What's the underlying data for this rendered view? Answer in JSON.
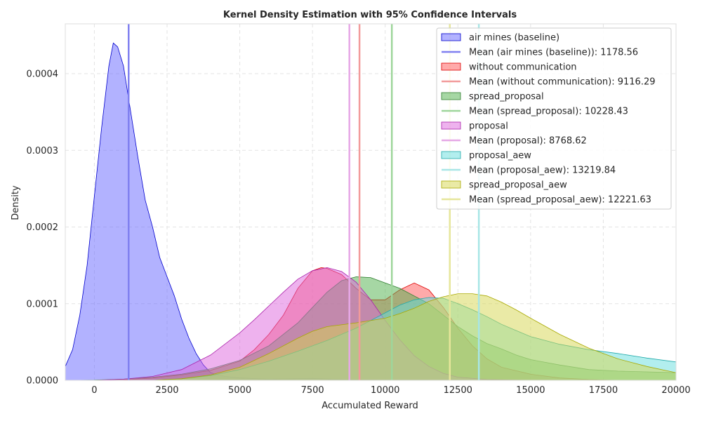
{
  "chart_data": {
    "type": "area",
    "title": "Kernel Density Estimation with 95% Confidence Intervals",
    "xlabel": "Accumulated Reward",
    "ylabel": "Density",
    "xlim": [
      -1000,
      20000
    ],
    "ylim": [
      0,
      0.000465
    ],
    "xticks": [
      0,
      2500,
      5000,
      7500,
      10000,
      12500,
      15000,
      17500,
      20000
    ],
    "yticks": [
      0.0,
      0.0001,
      0.0002,
      0.0003,
      0.0004
    ],
    "xtick_labels": [
      "0",
      "2500",
      "5000",
      "7500",
      "10000",
      "12500",
      "15000",
      "17500",
      "20000"
    ],
    "ytick_labels": [
      "0.0000",
      "0.0001",
      "0.0002",
      "0.0003",
      "0.0004"
    ],
    "grid": true,
    "legend_position": "top-right",
    "series": [
      {
        "name": "air mines (baseline)",
        "mean_label": "Mean (air mines (baseline)): 1178.56",
        "mean": 1178.56,
        "fill": "#6666ff",
        "stroke": "#0000cc",
        "mean_color": "#8080f0",
        "points": [
          [
            -1000,
            1.8e-05
          ],
          [
            -750,
            4e-05
          ],
          [
            -500,
            8.5e-05
          ],
          [
            -250,
            0.00015
          ],
          [
            0,
            0.00024
          ],
          [
            250,
            0.00033
          ],
          [
            500,
            0.00041
          ],
          [
            650,
            0.00044
          ],
          [
            800,
            0.000435
          ],
          [
            1000,
            0.00041
          ],
          [
            1250,
            0.00035
          ],
          [
            1500,
            0.00029
          ],
          [
            1750,
            0.000235
          ],
          [
            2000,
            0.0002
          ],
          [
            2250,
            0.00016
          ],
          [
            2500,
            0.000135
          ],
          [
            2750,
            0.00011
          ],
          [
            3000,
            8e-05
          ],
          [
            3250,
            5.5e-05
          ],
          [
            3500,
            3.5e-05
          ],
          [
            3750,
            2e-05
          ],
          [
            4000,
            1e-05
          ],
          [
            4250,
            7e-06
          ],
          [
            4500,
            5e-06
          ],
          [
            5000,
            3e-06
          ],
          [
            6000,
            1.5e-06
          ],
          [
            7500,
            2.5e-06
          ],
          [
            8500,
            1e-06
          ],
          [
            10000,
            5e-07
          ],
          [
            12000,
            2e-07
          ],
          [
            14000,
            0
          ],
          [
            20000,
            0
          ]
        ]
      },
      {
        "name": "without communication",
        "mean_label": "Mean (without communication): 9116.29",
        "mean": 9116.29,
        "fill": "#ff5555",
        "stroke": "#dd0000",
        "mean_color": "#f29a9a",
        "points": [
          [
            0,
            0
          ],
          [
            1000,
            5e-07
          ],
          [
            2000,
            3e-06
          ],
          [
            3000,
            7e-06
          ],
          [
            4000,
            1.3e-05
          ],
          [
            5000,
            2.5e-05
          ],
          [
            5500,
            4e-05
          ],
          [
            6000,
            6e-05
          ],
          [
            6500,
            8.5e-05
          ],
          [
            7000,
            0.00012
          ],
          [
            7500,
            0.000143
          ],
          [
            7800,
            0.000147
          ],
          [
            8000,
            0.000146
          ],
          [
            8500,
            0.000138
          ],
          [
            9000,
            0.00012
          ],
          [
            9500,
            0.000105
          ],
          [
            10000,
            0.000105
          ],
          [
            10500,
            0.000118
          ],
          [
            11000,
            0.000127
          ],
          [
            11500,
            0.000118
          ],
          [
            12000,
            9.5e-05
          ],
          [
            12500,
            6.8e-05
          ],
          [
            13000,
            4.5e-05
          ],
          [
            13500,
            2.8e-05
          ],
          [
            14000,
            1.7e-05
          ],
          [
            15000,
            8e-06
          ],
          [
            16000,
            3e-06
          ],
          [
            17000,
            1e-06
          ],
          [
            18000,
            0
          ],
          [
            20000,
            0
          ]
        ]
      },
      {
        "name": "spread_proposal",
        "mean_label": "Mean (spread_proposal): 10228.43",
        "mean": 10228.43,
        "fill": "#4daf4a",
        "stroke": "#2e7d2e",
        "mean_color": "#9ed69b",
        "points": [
          [
            -800,
            0
          ],
          [
            0,
            3e-07
          ],
          [
            1000,
            1.5e-06
          ],
          [
            2000,
            4e-06
          ],
          [
            3000,
            8e-06
          ],
          [
            4000,
            1.5e-05
          ],
          [
            5000,
            2.6e-05
          ],
          [
            6000,
            4.5e-05
          ],
          [
            7000,
            7.5e-05
          ],
          [
            7500,
            9.5e-05
          ],
          [
            8000,
            0.000115
          ],
          [
            8500,
            0.00013
          ],
          [
            9000,
            0.000135
          ],
          [
            9500,
            0.000134
          ],
          [
            10000,
            0.000127
          ],
          [
            10500,
            0.00012
          ],
          [
            11000,
            0.00011
          ],
          [
            11500,
            0.0001
          ],
          [
            12000,
            8.5e-05
          ],
          [
            12500,
            7e-05
          ],
          [
            13000,
            5.8e-05
          ],
          [
            13500,
            4.8e-05
          ],
          [
            14000,
            4.1e-05
          ],
          [
            14500,
            3.3e-05
          ],
          [
            15000,
            2.7e-05
          ],
          [
            16000,
            2e-05
          ],
          [
            17000,
            1.4e-05
          ],
          [
            18000,
            1.2e-05
          ],
          [
            19000,
            1.1e-05
          ],
          [
            20000,
            1e-05
          ]
        ]
      },
      {
        "name": "proposal",
        "mean_label": "Mean (proposal): 8768.62",
        "mean": 8768.62,
        "fill": "#dd66dd",
        "stroke": "#aa22aa",
        "mean_color": "#e6a8e6",
        "points": [
          [
            0,
            0
          ],
          [
            1000,
            1.5e-06
          ],
          [
            2000,
            5e-06
          ],
          [
            3000,
            1.4e-05
          ],
          [
            4000,
            3.3e-05
          ],
          [
            5000,
            6.2e-05
          ],
          [
            5500,
            7.9e-05
          ],
          [
            6000,
            9.7e-05
          ],
          [
            6500,
            0.000115
          ],
          [
            7000,
            0.000132
          ],
          [
            7500,
            0.000143
          ],
          [
            8000,
            0.000147
          ],
          [
            8500,
            0.000142
          ],
          [
            9000,
            0.000128
          ],
          [
            9500,
            0.000105
          ],
          [
            10000,
            7.8e-05
          ],
          [
            10500,
            5.3e-05
          ],
          [
            11000,
            3.2e-05
          ],
          [
            11500,
            1.8e-05
          ],
          [
            12000,
            9e-06
          ],
          [
            12500,
            4e-06
          ],
          [
            13500,
            1e-06
          ],
          [
            15000,
            0
          ],
          [
            20000,
            0
          ]
        ]
      },
      {
        "name": "proposal_aew",
        "mean_label": "Mean (proposal_aew): 13219.84",
        "mean": 13219.84,
        "fill": "#66dddd",
        "stroke": "#22aaaa",
        "mean_color": "#a8e6e6",
        "points": [
          [
            2000,
            0
          ],
          [
            3000,
            2e-06
          ],
          [
            4000,
            6e-06
          ],
          [
            5000,
            1.4e-05
          ],
          [
            6000,
            2.5e-05
          ],
          [
            7000,
            3.8e-05
          ],
          [
            8000,
            5.2e-05
          ],
          [
            9000,
            6.8e-05
          ],
          [
            9500,
            7.8e-05
          ],
          [
            10000,
            8.8e-05
          ],
          [
            10500,
            9.8e-05
          ],
          [
            11000,
            0.000105
          ],
          [
            11500,
            0.000108
          ],
          [
            12000,
            0.000107
          ],
          [
            12500,
            0.0001
          ],
          [
            13000,
            9.2e-05
          ],
          [
            13500,
            8.3e-05
          ],
          [
            14000,
            7.3e-05
          ],
          [
            14500,
            6.5e-05
          ],
          [
            15000,
            5.7e-05
          ],
          [
            16000,
            4.7e-05
          ],
          [
            17000,
            4e-05
          ],
          [
            18000,
            3.5e-05
          ],
          [
            19000,
            2.9e-05
          ],
          [
            20000,
            2.4e-05
          ]
        ]
      },
      {
        "name": "spread_proposal_aew",
        "mean_label": "Mean (spread_proposal_aew): 12221.63",
        "mean": 12221.63,
        "fill": "#d6d64d",
        "stroke": "#a8a800",
        "mean_color": "#e6e69a",
        "points": [
          [
            2000,
            0
          ],
          [
            3000,
            2e-06
          ],
          [
            4000,
            7e-06
          ],
          [
            5000,
            1.7e-05
          ],
          [
            6000,
            3.5e-05
          ],
          [
            7000,
            5.5e-05
          ],
          [
            7500,
            6.4e-05
          ],
          [
            8000,
            7e-05
          ],
          [
            9000,
            7.5e-05
          ],
          [
            10000,
            8.1e-05
          ],
          [
            10500,
            8.7e-05
          ],
          [
            11000,
            9.4e-05
          ],
          [
            11500,
            0.000103
          ],
          [
            12000,
            0.000109
          ],
          [
            12500,
            0.000113
          ],
          [
            13000,
            0.000113
          ],
          [
            13500,
            0.00011
          ],
          [
            14000,
            0.000102
          ],
          [
            14500,
            9.2e-05
          ],
          [
            15000,
            8.1e-05
          ],
          [
            16000,
            6e-05
          ],
          [
            17000,
            4.2e-05
          ],
          [
            18000,
            2.8e-05
          ],
          [
            19000,
            1.8e-05
          ],
          [
            20000,
            1e-05
          ]
        ]
      }
    ]
  }
}
